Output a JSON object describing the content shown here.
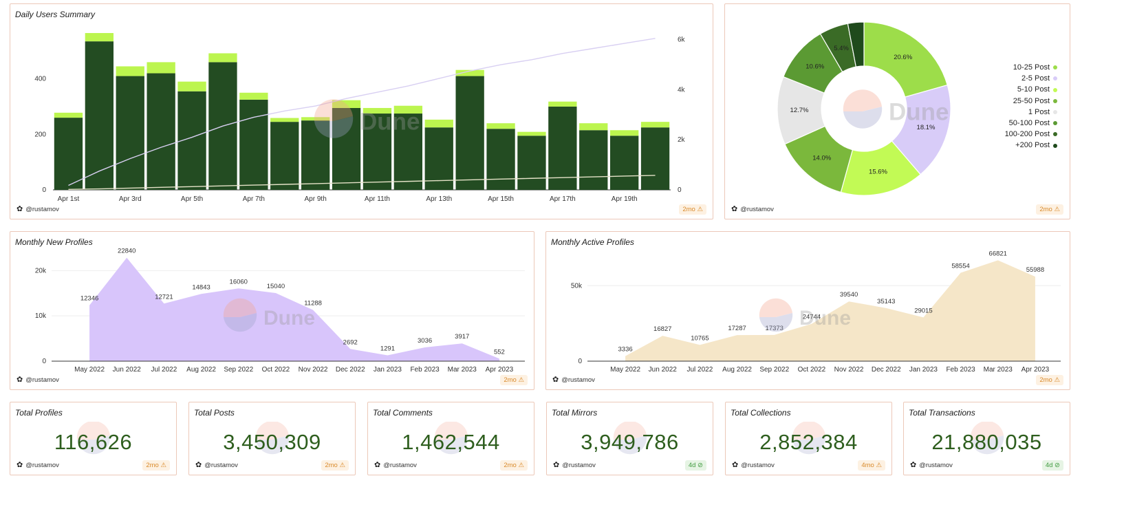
{
  "author": "@rustamov",
  "watermark": "Dune",
  "colors": {
    "bar_dark": "#234c22",
    "bar_light": "#bcf54f",
    "line_cum": "#d8cff2",
    "purple_area": "#d8c5fb",
    "tan_area": "#f5e6c8",
    "value_text": "#2e5e1e"
  },
  "daily": {
    "title": "Daily Users Summary",
    "badge": "2mo",
    "left_ticks": [
      "0",
      "200",
      "400"
    ],
    "right_ticks": [
      "0",
      "2k",
      "4k",
      "6k"
    ],
    "x_labels": [
      "Apr 1st",
      "Apr 3rd",
      "Apr 5th",
      "Apr 7th",
      "Apr 9th",
      "Apr 11th",
      "Apr 13th",
      "Apr 15th",
      "Apr 17th",
      "Apr 19th"
    ],
    "chart_data": {
      "type": "bar",
      "title": "Daily Users Summary",
      "categories": [
        "Apr 1",
        "Apr 2",
        "Apr 3",
        "Apr 4",
        "Apr 5",
        "Apr 6",
        "Apr 7",
        "Apr 8",
        "Apr 9",
        "Apr 10",
        "Apr 11",
        "Apr 12",
        "Apr 13",
        "Apr 14",
        "Apr 15",
        "Apr 16",
        "Apr 17",
        "Apr 18",
        "Apr 19",
        "Apr 20"
      ],
      "series": [
        {
          "name": "base",
          "values": [
            260,
            535,
            410,
            420,
            355,
            460,
            325,
            245,
            250,
            295,
            275,
            275,
            225,
            410,
            220,
            195,
            300,
            215,
            195,
            225
          ]
        },
        {
          "name": "top",
          "values": [
            18,
            30,
            35,
            40,
            35,
            32,
            25,
            14,
            12,
            28,
            20,
            28,
            28,
            22,
            20,
            14,
            18,
            25,
            20,
            20
          ]
        },
        {
          "name": "cumulative",
          "axis": "right",
          "values": [
            180,
            750,
            1250,
            1700,
            2100,
            2550,
            2900,
            3150,
            3350,
            3650,
            3900,
            4150,
            4450,
            4750,
            5000,
            5200,
            5450,
            5650,
            5850,
            6050
          ]
        },
        {
          "name": "cumulative_2",
          "axis": "right",
          "values": [
            20,
            40,
            70,
            100,
            130,
            160,
            190,
            220,
            250,
            280,
            310,
            340,
            370,
            400,
            430,
            460,
            490,
            520,
            550,
            580
          ]
        }
      ],
      "ylim": [
        0,
        570
      ],
      "y2lim": [
        0,
        6100
      ]
    }
  },
  "pie": {
    "badge": "2mo",
    "chart_data": {
      "type": "pie",
      "labels": [
        "10-25 Post",
        "2-5 Post",
        "5-10 Post",
        "25-50 Post",
        "1 Post",
        "50-100 Post",
        "100-200 Post",
        "+200 Post"
      ],
      "values": [
        20.6,
        18.1,
        15.6,
        14.0,
        12.7,
        10.6,
        5.4,
        3.0
      ],
      "value_labels": [
        "20.6%",
        "18.1%",
        "15.6%",
        "14.0%",
        "12.7%",
        "10.6%",
        "5.4%",
        ""
      ],
      "colors": [
        "#9ddd4a",
        "#d8ccf8",
        "#c2fa55",
        "#7bb83c",
        "#e6e6e6",
        "#5b9a33",
        "#3a6b26",
        "#1f4a1c"
      ]
    }
  },
  "new_profiles": {
    "title": "Monthly New Profiles",
    "badge": "2mo",
    "y_ticks": [
      "0",
      "10k",
      "20k"
    ],
    "chart_data": {
      "type": "area",
      "categories": [
        "May 2022",
        "Jun 2022",
        "Jul 2022",
        "Aug 2022",
        "Sep 2022",
        "Oct 2022",
        "Nov 2022",
        "Dec 2022",
        "Jan 2023",
        "Feb 2023",
        "Mar 2023",
        "Apr 2023"
      ],
      "values": [
        12346,
        22840,
        12721,
        14843,
        16060,
        15040,
        11288,
        2692,
        1291,
        3036,
        3917,
        552
      ],
      "ylim": [
        0,
        24000
      ]
    }
  },
  "active_profiles": {
    "title": "Monthly Active Profiles",
    "badge": "2mo",
    "y_ticks": [
      "0",
      "50k"
    ],
    "chart_data": {
      "type": "area",
      "categories": [
        "May 2022",
        "Jun 2022",
        "Jul 2022",
        "Aug 2022",
        "Sep 2022",
        "Oct 2022",
        "Nov 2022",
        "Dec 2022",
        "Jan 2023",
        "Feb 2023",
        "Mar 2023",
        "Apr 2023"
      ],
      "values": [
        3336,
        16827,
        10765,
        17287,
        17373,
        24744,
        39540,
        35143,
        29015,
        58554,
        66821,
        55988
      ],
      "ylim": [
        0,
        72000
      ]
    }
  },
  "stats": [
    {
      "title": "Total Profiles",
      "value": "116,626",
      "badge": "2mo",
      "badge_type": "warn"
    },
    {
      "title": "Total Posts",
      "value": "3,450,309",
      "badge": "2mo",
      "badge_type": "warn"
    },
    {
      "title": "Total Comments",
      "value": "1,462,544",
      "badge": "2mo",
      "badge_type": "warn"
    },
    {
      "title": "Total Mirrors",
      "value": "3,949,786",
      "badge": "4d",
      "badge_type": "ok"
    },
    {
      "title": "Total Collections",
      "value": "2,852,384",
      "badge": "4mo",
      "badge_type": "warn"
    },
    {
      "title": "Total Transactions",
      "value": "21,880,035",
      "badge": "4d",
      "badge_type": "ok"
    }
  ]
}
